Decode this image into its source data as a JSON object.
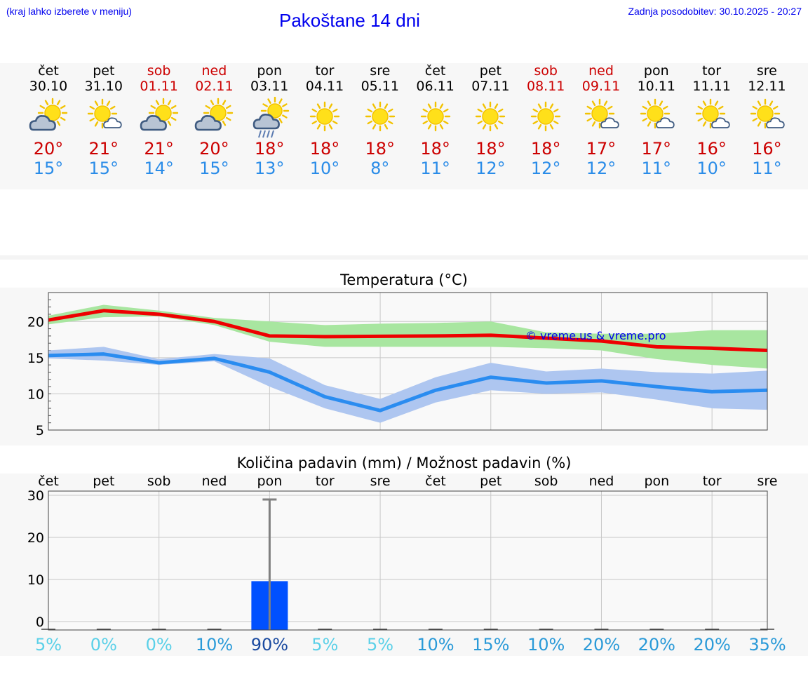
{
  "header": {
    "hint": "(kraj lahko izberete v meniju)",
    "title": "Pakoštane 14 dni",
    "updated": "Zadnja posodobitev: 30.10.2025 - 20:27"
  },
  "days": [
    {
      "name": "čet",
      "date": "30.10",
      "weekend": false,
      "icon": "sun-cloud-icon",
      "max": "20°",
      "min": "15°"
    },
    {
      "name": "pet",
      "date": "31.10",
      "weekend": false,
      "icon": "sun-small-cloud-icon",
      "max": "21°",
      "min": "15°"
    },
    {
      "name": "sob",
      "date": "01.11",
      "weekend": true,
      "icon": "sun-cloud-icon",
      "max": "21°",
      "min": "14°"
    },
    {
      "name": "ned",
      "date": "02.11",
      "weekend": true,
      "icon": "sun-cloud-icon",
      "max": "20°",
      "min": "15°"
    },
    {
      "name": "pon",
      "date": "03.11",
      "weekend": false,
      "icon": "rain-cloud-icon",
      "max": "18°",
      "min": "13°"
    },
    {
      "name": "tor",
      "date": "04.11",
      "weekend": false,
      "icon": "sun-icon",
      "max": "18°",
      "min": "10°"
    },
    {
      "name": "sre",
      "date": "05.11",
      "weekend": false,
      "icon": "sun-icon",
      "max": "18°",
      "min": "8°"
    },
    {
      "name": "čet",
      "date": "06.11",
      "weekend": false,
      "icon": "sun-icon",
      "max": "18°",
      "min": "11°"
    },
    {
      "name": "pet",
      "date": "07.11",
      "weekend": false,
      "icon": "sun-icon",
      "max": "18°",
      "min": "12°"
    },
    {
      "name": "sob",
      "date": "08.11",
      "weekend": true,
      "icon": "sun-icon",
      "max": "18°",
      "min": "12°"
    },
    {
      "name": "ned",
      "date": "09.11",
      "weekend": true,
      "icon": "sun-small-cloud-icon",
      "max": "17°",
      "min": "12°"
    },
    {
      "name": "pon",
      "date": "10.11",
      "weekend": false,
      "icon": "sun-small-cloud-icon",
      "max": "17°",
      "min": "11°"
    },
    {
      "name": "tor",
      "date": "11.11",
      "weekend": false,
      "icon": "sun-small-cloud-icon",
      "max": "16°",
      "min": "10°"
    },
    {
      "name": "sre",
      "date": "12.11",
      "weekend": false,
      "icon": "sun-small-cloud-icon",
      "max": "16°",
      "min": "11°"
    }
  ],
  "colors": {
    "max": "#ee0000",
    "min": "#2a8cf0",
    "max_band": "#a8e6a0",
    "min_band": "#aec6f0",
    "bar": "#0050ff",
    "error_bar": "#808080",
    "weekend": "#cc0000",
    "link": "#0000ee"
  },
  "chart_data": [
    {
      "type": "line",
      "title": "Temperatura (°C)",
      "watermark": "© vreme.us & vreme.pro",
      "ylim": [
        5,
        24
      ],
      "yticks": [
        5,
        10,
        15,
        20
      ],
      "x": [
        0,
        1,
        2,
        3,
        4,
        5,
        6,
        7,
        8,
        9,
        10,
        11,
        12,
        13
      ],
      "series": [
        {
          "name": "max",
          "values": [
            20.2,
            21.5,
            21.0,
            20.0,
            18.0,
            17.9,
            17.95,
            18.0,
            18.1,
            17.7,
            17.3,
            16.5,
            16.3,
            16.0
          ],
          "band_low": [
            19.6,
            20.6,
            20.7,
            19.5,
            17.2,
            16.5,
            16.5,
            16.5,
            16.5,
            16.3,
            16.0,
            14.8,
            14.0,
            13.5
          ],
          "band_high": [
            20.8,
            22.3,
            21.5,
            20.5,
            20.0,
            19.5,
            19.7,
            19.8,
            20.0,
            18.5,
            18.3,
            18.3,
            18.8,
            18.8
          ]
        },
        {
          "name": "min",
          "values": [
            15.3,
            15.5,
            14.3,
            14.9,
            13.0,
            9.6,
            7.7,
            10.5,
            12.3,
            11.5,
            11.8,
            11.0,
            10.3,
            10.5
          ],
          "band_low": [
            14.9,
            14.6,
            14.0,
            14.5,
            11.0,
            8.0,
            6.0,
            8.8,
            10.5,
            10.0,
            10.2,
            9.2,
            8.0,
            7.8
          ],
          "band_high": [
            16.0,
            16.5,
            14.8,
            15.5,
            14.9,
            11.2,
            9.3,
            12.3,
            14.3,
            13.1,
            13.5,
            13.0,
            12.8,
            13.2
          ]
        }
      ]
    },
    {
      "type": "bar",
      "title": "Količina padavin (mm) / Možnost padavin (%)",
      "ylim": [
        -2,
        31
      ],
      "yticks": [
        0,
        10,
        20,
        30
      ],
      "categories": [
        "čet",
        "pet",
        "sob",
        "ned",
        "pon",
        "tor",
        "sre",
        "čet",
        "pet",
        "sob",
        "ned",
        "pon",
        "tor",
        "sre"
      ],
      "values": [
        0,
        0,
        0,
        0,
        9.6,
        0,
        0,
        0,
        0,
        0,
        0,
        0,
        0,
        0
      ],
      "error_high": [
        0,
        0,
        0,
        0,
        29.0,
        0,
        0,
        0,
        0,
        0,
        0,
        0,
        0,
        0
      ],
      "probabilities": [
        "5%",
        "0%",
        "0%",
        "10%",
        "90%",
        "5%",
        "5%",
        "10%",
        "15%",
        "10%",
        "20%",
        "20%",
        "20%",
        "35%"
      ],
      "probability_values": [
        5,
        0,
        0,
        10,
        90,
        5,
        5,
        10,
        15,
        10,
        20,
        20,
        20,
        35
      ]
    }
  ]
}
